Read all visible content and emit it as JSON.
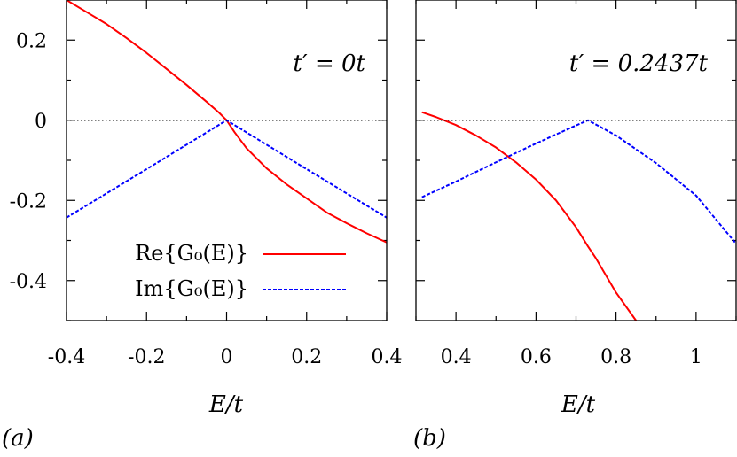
{
  "colors": {
    "re": "#ff0000",
    "im": "#0000ff",
    "zero": "#000000"
  },
  "chart_data": [
    {
      "type": "line",
      "panel_label": "(a)",
      "annotation": "t′ = 0t",
      "xlabel": "E/t",
      "ylabel": "",
      "xlim": [
        -0.4,
        0.4
      ],
      "ylim": [
        -0.5,
        0.3
      ],
      "xticks": [
        -0.4,
        -0.2,
        0,
        0.2,
        0.4
      ],
      "xtick_labels": [
        "-0.4",
        "-0.2",
        "0",
        "0.2",
        "0.4"
      ],
      "yticks": [
        -0.4,
        -0.2,
        0,
        0.2
      ],
      "ytick_labels": [
        "-0.4",
        "-0.2",
        "0",
        "0.2"
      ],
      "legend": {
        "placement": "bottom-left"
      },
      "series": [
        {
          "name": "Re{G₀(E)}",
          "style": "solid",
          "x": [
            -0.4,
            -0.35,
            -0.3,
            -0.25,
            -0.2,
            -0.15,
            -0.1,
            -0.05,
            -0.02,
            0,
            0.02,
            0.05,
            0.1,
            0.15,
            0.2,
            0.25,
            0.3,
            0.35,
            0.4
          ],
          "y": [
            0.3,
            0.27,
            0.24,
            0.205,
            0.168,
            0.128,
            0.088,
            0.046,
            0.02,
            0,
            -0.03,
            -0.07,
            -0.12,
            -0.16,
            -0.195,
            -0.23,
            -0.257,
            -0.282,
            -0.305
          ]
        },
        {
          "name": "Im{G₀(E)}",
          "style": "dashed",
          "x": [
            -0.4,
            -0.2,
            0,
            0.2,
            0.4
          ],
          "y": [
            -0.243,
            -0.122,
            0,
            -0.122,
            -0.243
          ]
        },
        {
          "name": "",
          "style": "dotted",
          "x": [
            -0.4,
            0.4
          ],
          "y": [
            0,
            0
          ]
        }
      ]
    },
    {
      "type": "line",
      "panel_label": "(b)",
      "annotation": "t′ = 0.2437t",
      "xlabel": "E/t",
      "ylabel": "",
      "xlim": [
        0.3,
        1.1
      ],
      "ylim": [
        -0.5,
        0.3
      ],
      "xticks": [
        0.4,
        0.6,
        0.8,
        1.0
      ],
      "xtick_labels": [
        "0.4",
        "0.6",
        "0.8",
        "1"
      ],
      "series": [
        {
          "name": "Re{G₀(E)}",
          "style": "solid",
          "x": [
            0.315,
            0.35,
            0.4,
            0.45,
            0.5,
            0.55,
            0.6,
            0.65,
            0.7,
            0.73,
            0.75,
            0.8,
            0.85
          ],
          "y": [
            0.02,
            0.008,
            -0.012,
            -0.038,
            -0.068,
            -0.105,
            -0.148,
            -0.2,
            -0.267,
            -0.315,
            -0.345,
            -0.43,
            -0.5
          ]
        },
        {
          "name": "Im{G₀(E)}",
          "style": "dashed",
          "x": [
            0.315,
            0.4,
            0.5,
            0.6,
            0.7,
            0.73,
            0.8,
            0.9,
            1.0,
            1.1
          ],
          "y": [
            -0.192,
            -0.153,
            -0.105,
            -0.058,
            -0.013,
            0,
            -0.038,
            -0.107,
            -0.188,
            -0.308
          ]
        },
        {
          "name": "",
          "style": "dotted",
          "x": [
            0.3,
            1.1
          ],
          "y": [
            0,
            0
          ]
        }
      ]
    }
  ]
}
